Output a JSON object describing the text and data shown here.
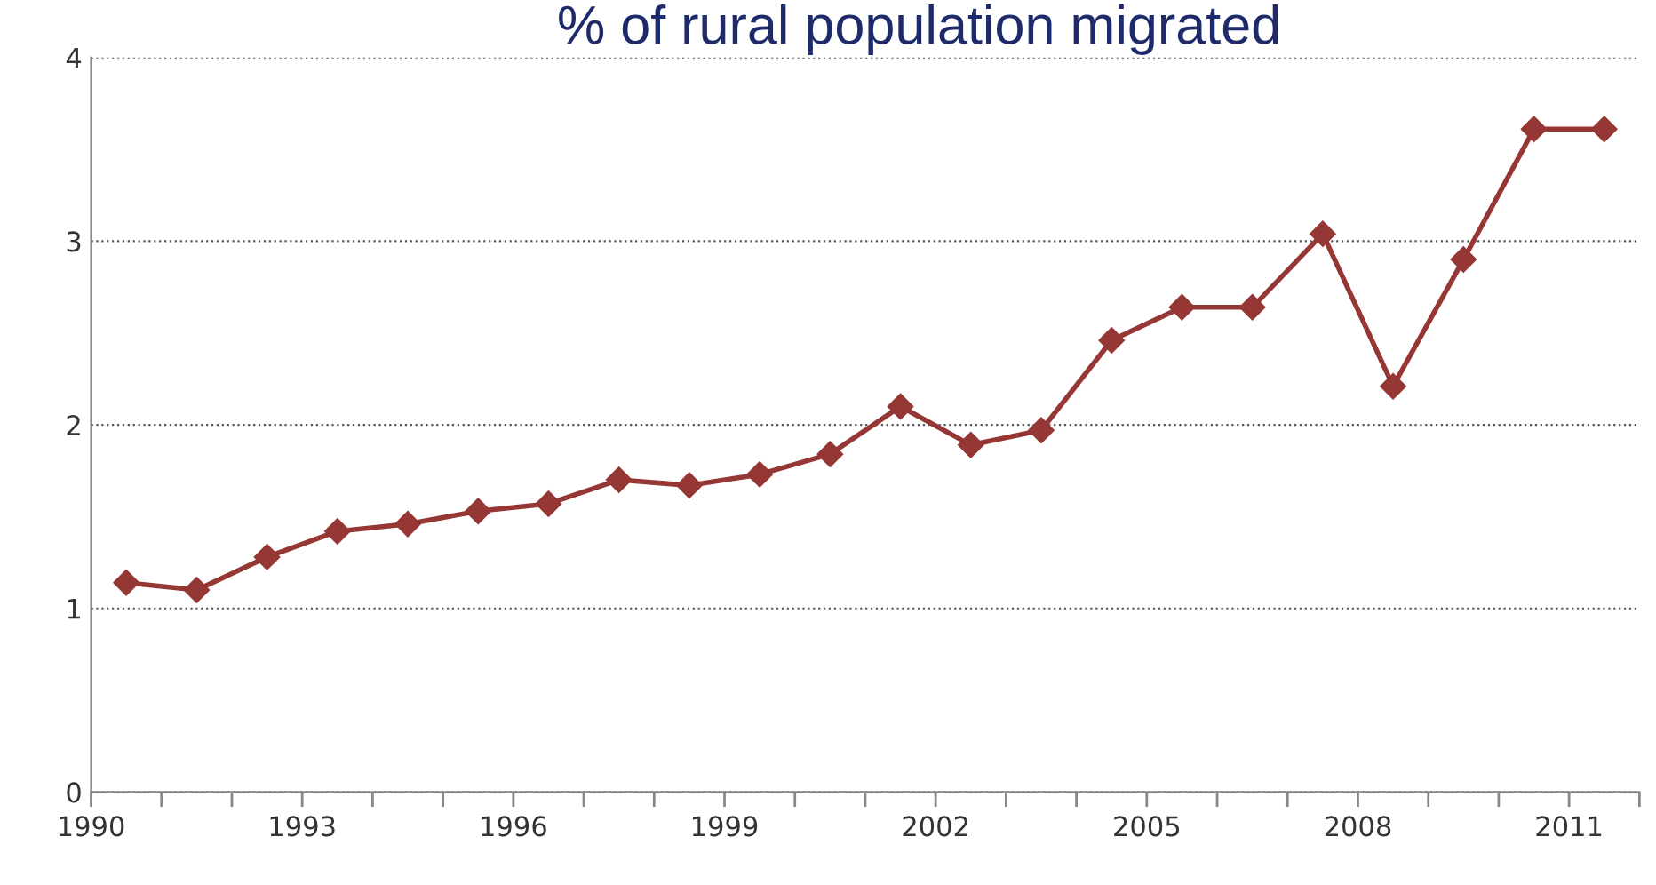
{
  "chart_data": {
    "type": "line",
    "title": "% of rural population migrated",
    "x": [
      1990.5,
      1991.5,
      1992.5,
      1993.5,
      1994.5,
      1995.5,
      1996.5,
      1997.5,
      1998.5,
      1999.5,
      2000.5,
      2001.5,
      2002.5,
      2003.5,
      2004.5,
      2005.5,
      2006.5,
      2007.5,
      2008.5,
      2009.5,
      2010.5,
      2011.5
    ],
    "series": [
      {
        "color": "#953735",
        "values": [
          1.14,
          1.1,
          1.28,
          1.42,
          1.46,
          1.53,
          1.57,
          1.7,
          1.67,
          1.73,
          1.84,
          2.1,
          1.89,
          1.97,
          2.46,
          2.64,
          2.64,
          3.04,
          2.21,
          2.9,
          3.61,
          3.61
        ]
      }
    ],
    "xlim": [
      1990,
      2012
    ],
    "xticks": [
      1990,
      {
        "value": 1991,
        "label": null
      },
      {
        "value": 1992,
        "label": null
      },
      1993,
      {
        "value": 1994,
        "label": null
      },
      {
        "value": 1995,
        "label": null
      },
      1996,
      {
        "value": 1997,
        "label": null
      },
      {
        "value": 1998,
        "label": null
      },
      1999,
      {
        "value": 2000,
        "label": null
      },
      {
        "value": 2001,
        "label": null
      },
      2002,
      {
        "value": 2003,
        "label": null
      },
      {
        "value": 2004,
        "label": null
      },
      2005,
      {
        "value": 2006,
        "label": null
      },
      {
        "value": 2007,
        "label": null
      },
      2008,
      {
        "value": 2009,
        "label": null
      },
      {
        "value": 2010,
        "label": null
      },
      2011,
      {
        "value": 2012,
        "label": null
      }
    ],
    "ylim": [
      0,
      4
    ],
    "yticks": [
      0,
      1,
      2,
      3,
      4
    ],
    "grid": "y",
    "marker": "diamond",
    "line_style": "solid"
  }
}
